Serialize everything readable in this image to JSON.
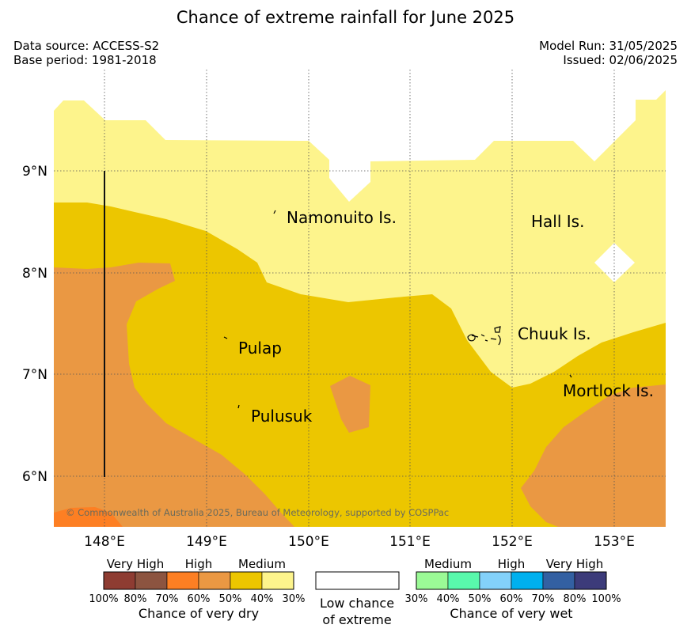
{
  "title": "Chance of extreme rainfall for June 2025",
  "meta": {
    "data_source": "Data source: ACCESS-S2",
    "base_period": "Base period: 1981-2018",
    "model_run": "Model Run: 31/05/2025",
    "issued": "Issued: 02/06/2025"
  },
  "map": {
    "latitude_labels": [
      "9°N",
      "8°N",
      "7°N",
      "6°N"
    ],
    "longitude_labels": [
      "148°E",
      "149°E",
      "150°E",
      "151°E",
      "152°E",
      "153°E"
    ],
    "place_labels": {
      "namonuito": "Namonuito Is.",
      "hall": "Hall Is.",
      "pulap": "Pulap",
      "chuuk": "Chuuk Is.",
      "pulusuk": "Pulusuk",
      "mortlock": "Mortlock Is."
    },
    "copyright": "© Commonwealth of Australia 2025, Bureau of Meteorology, supported by COSPPac",
    "zone_colors": {
      "dry_medium_30_40": "#fdf48c",
      "dry_medium_40_50": "#ecc600",
      "dry_high_50_60": "#ea9843",
      "dry_high_60_70": "#fd7f23",
      "low_chance": "#ffffff"
    }
  },
  "legend": {
    "dry": {
      "headers": [
        "Very High",
        "High",
        "Medium"
      ],
      "ticks": [
        "100%",
        "80%",
        "70%",
        "60%",
        "50%",
        "40%",
        "30%"
      ],
      "colors": [
        "#8e3c32",
        "#8c5440",
        "#fd7f23",
        "#ea9843",
        "#ecc600",
        "#fdf48c"
      ],
      "title": "Chance of very dry"
    },
    "neutral": {
      "line1": "Low chance",
      "line2": "of extreme",
      "color": "#ffffff"
    },
    "wet": {
      "headers": [
        "Medium",
        "High",
        "Very High"
      ],
      "ticks": [
        "30%",
        "40%",
        "50%",
        "60%",
        "70%",
        "80%",
        "100%"
      ],
      "colors": [
        "#9bfa96",
        "#59f9ac",
        "#83d1fa",
        "#00b0ee",
        "#3360a2",
        "#3c3b7a"
      ],
      "title": "Chance of very wet"
    }
  }
}
